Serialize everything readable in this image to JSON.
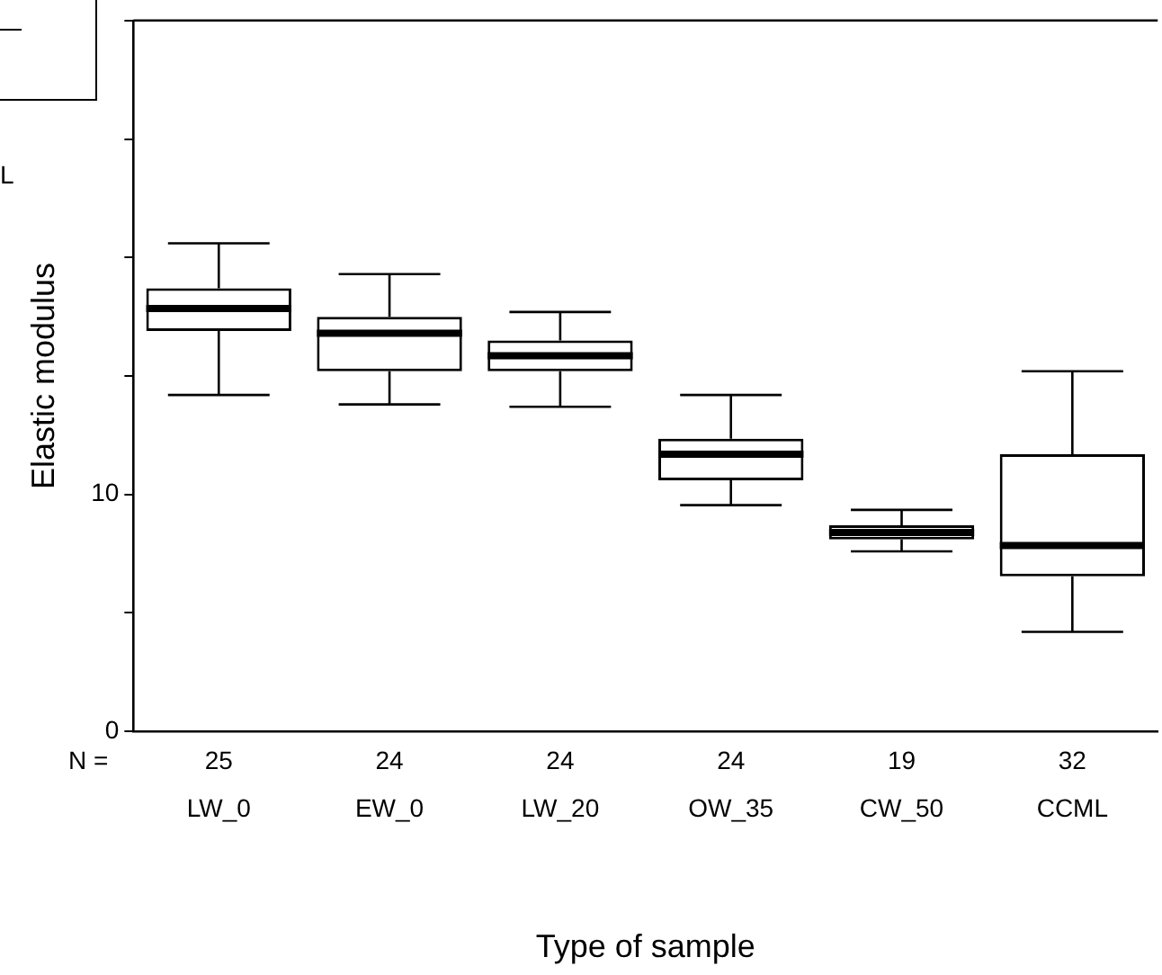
{
  "chart_data": {
    "type": "box",
    "xlabel": "Type of sample",
    "ylabel": "Elastic modulus",
    "categories": [
      "LW_0",
      "EW_0",
      "LW_20",
      "OW_35",
      "CW_50",
      "CCML"
    ],
    "boxes": [
      {
        "low": 14.2,
        "q1": 16.9,
        "median": 17.85,
        "q3": 18.7,
        "high": 20.6
      },
      {
        "low": 13.8,
        "q1": 15.2,
        "median": 16.8,
        "q3": 17.5,
        "high": 19.3
      },
      {
        "low": 13.7,
        "q1": 15.2,
        "median": 15.85,
        "q3": 16.5,
        "high": 17.7
      },
      {
        "low": 9.55,
        "q1": 10.6,
        "median": 11.7,
        "q3": 12.35,
        "high": 14.2
      },
      {
        "low": 7.6,
        "q1": 8.1,
        "median": 8.4,
        "q3": 8.7,
        "high": 9.35
      },
      {
        "low": 4.2,
        "q1": 6.55,
        "median": 7.85,
        "q3": 11.7,
        "high": 15.2
      }
    ],
    "ylim": [
      0,
      30
    ],
    "yticks": [
      0,
      {
        "value": 5,
        "label": null
      },
      10,
      {
        "value": 15,
        "label": null
      },
      {
        "value": 20,
        "label": null
      },
      {
        "value": 25,
        "label": null
      },
      {
        "value": 30,
        "label": null
      }
    ],
    "grid": false,
    "legend": false,
    "annotations": [
      "L",
      "N =",
      "25",
      "24",
      "24",
      "24",
      "19",
      "32"
    ]
  }
}
